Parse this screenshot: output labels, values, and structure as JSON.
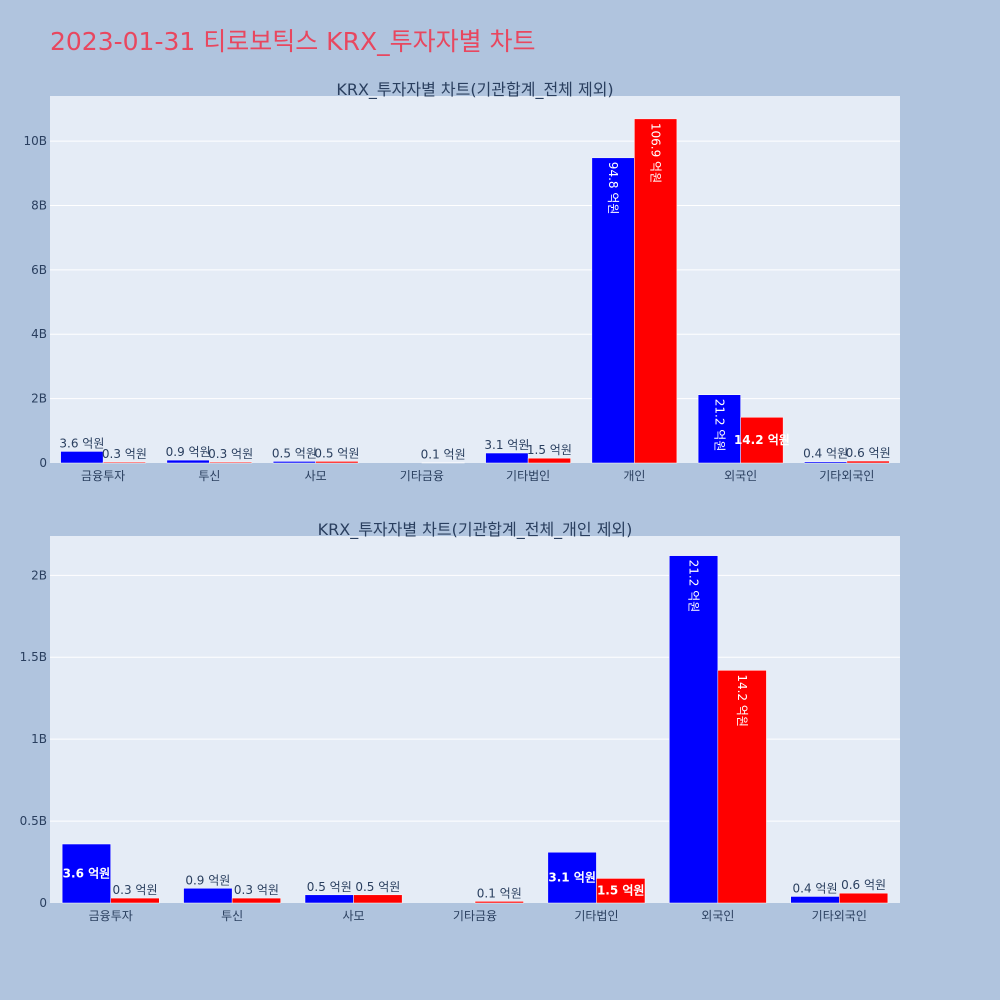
{
  "title": "2023-01-31 티로보틱스 KRX_투자자별 차트",
  "colors": {
    "page_background": "#b0c4de",
    "plot_background": "#e5ecf6",
    "title": "#e8475f",
    "series_1": "#0000ff",
    "series_2": "#ff0000",
    "text": "#2a3f5f"
  },
  "chart_data": [
    {
      "type": "bar",
      "title": "KRX_투자자별 차트(기관합계_전체 제외)",
      "categories": [
        "금융투자",
        "투신",
        "사모",
        "기타금융",
        "기타법인",
        "개인",
        "외국인",
        "기타외국인"
      ],
      "series": [
        {
          "values": [
            360000000,
            90000000,
            50000000,
            0,
            310000000,
            9480000000,
            2120000000,
            40000000
          ],
          "labels": [
            "3.6 억원",
            "0.9 억원",
            "0.5 억원",
            "",
            "3.1 억원",
            "94.8 억원",
            "21.2 억원",
            "0.4 억원"
          ]
        },
        {
          "values": [
            30000000,
            30000000,
            50000000,
            10000000,
            150000000,
            10690000000,
            1420000000,
            60000000
          ],
          "labels": [
            "0.3 억원",
            "0.3 억원",
            "0.5 억원",
            "0.1 억원",
            "1.5 억원",
            "106.9 억원",
            "14.2 억원",
            "0.6 억원"
          ]
        }
      ],
      "ylim": [
        0,
        11400000000
      ],
      "yticks": [
        0,
        2000000000,
        4000000000,
        6000000000,
        8000000000,
        10000000000
      ],
      "ytick_labels": [
        "0",
        "2B",
        "4B",
        "6B",
        "8B",
        "10B"
      ],
      "grid": true,
      "xlabel": "",
      "ylabel": ""
    },
    {
      "type": "bar",
      "title": "KRX_투자자별 차트(기관합계_전체_개인 제외)",
      "categories": [
        "금융투자",
        "투신",
        "사모",
        "기타금융",
        "기타법인",
        "외국인",
        "기타외국인"
      ],
      "series": [
        {
          "values": [
            360000000,
            90000000,
            50000000,
            0,
            310000000,
            2120000000,
            40000000
          ],
          "labels": [
            "3.6 억원",
            "0.9 억원",
            "0.5 억원",
            "",
            "3.1 억원",
            "21.2 억원",
            "0.4 억원"
          ]
        },
        {
          "values": [
            30000000,
            30000000,
            50000000,
            10000000,
            150000000,
            1420000000,
            60000000
          ],
          "labels": [
            "0.3 억원",
            "0.3 억원",
            "0.5 억원",
            "0.1 억원",
            "1.5 억원",
            "14.2 억원",
            "0.6 억원"
          ]
        }
      ],
      "ylim": [
        0,
        2240000000
      ],
      "yticks": [
        0,
        500000000,
        1000000000,
        1500000000,
        2000000000
      ],
      "ytick_labels": [
        "0",
        "0.5B",
        "1B",
        "1.5B",
        "2B"
      ],
      "grid": true,
      "xlabel": "",
      "ylabel": ""
    }
  ]
}
